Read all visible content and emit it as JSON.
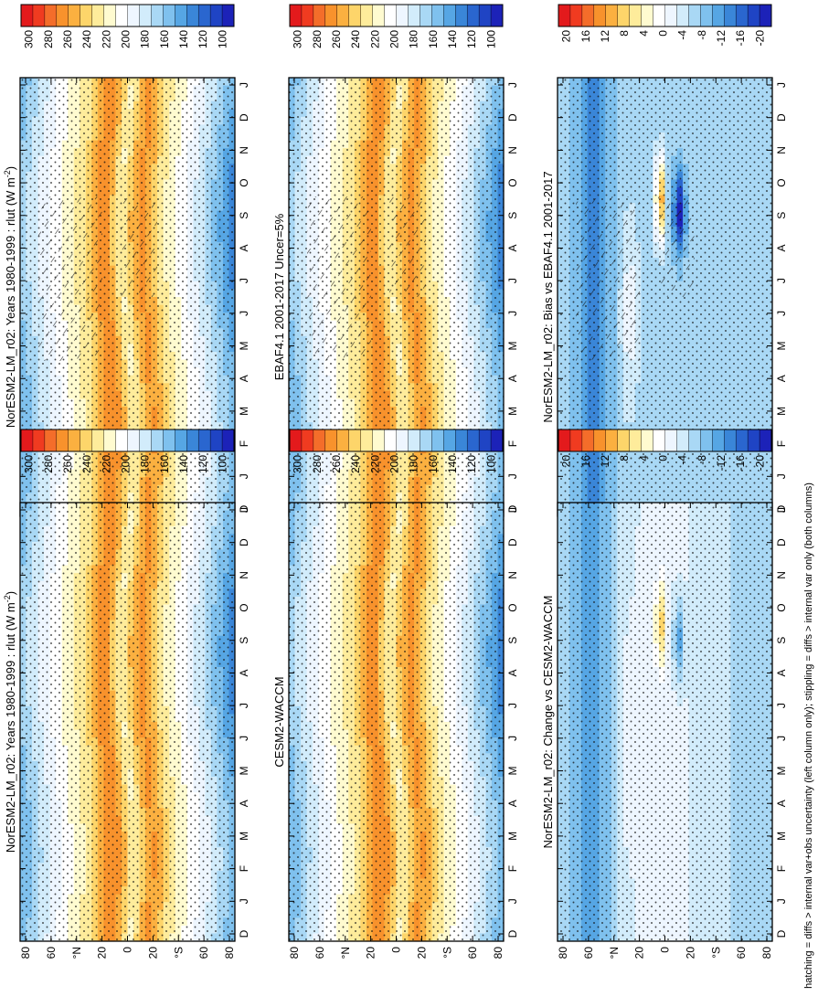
{
  "figure": {
    "footnote": "hatching = diffs > internal var+obs uncertainty (left column only); stippling = diffs > internal var only (both columns)"
  },
  "chart_data": [
    {
      "type": "heatmap",
      "title": "NorESM2-LM_r02: Years 1980-1999 : rlut (W m",
      "title_sup": "-2",
      "title_end": ")",
      "x_ticks": [
        "D",
        "J",
        "F",
        "M",
        "A",
        "M",
        "J",
        "J",
        "A",
        "S",
        "O",
        "N",
        "D",
        "J"
      ],
      "y_ticks": [
        "80",
        "60",
        "°N",
        "20",
        "0",
        "20",
        "°S",
        "60",
        "80"
      ],
      "ylim": [
        -90,
        90
      ],
      "colorbar": [
        "300",
        "280",
        "260",
        "240",
        "220",
        "200",
        "180",
        "160",
        "140",
        "120",
        "100"
      ],
      "field": "abs",
      "hatch": true
    },
    {
      "type": "heatmap",
      "title": "NorESM2-LM_r02: Years 1980-1999 : rlut (W m",
      "title_sup": "-2",
      "title_end": ")",
      "x_ticks": [
        "D",
        "J",
        "F",
        "M",
        "A",
        "M",
        "J",
        "J",
        "A",
        "S",
        "O",
        "N",
        "D",
        "J"
      ],
      "y_ticks": [
        "80",
        "60",
        "°N",
        "20",
        "0",
        "20",
        "°S",
        "60",
        "80"
      ],
      "ylim": [
        -90,
        90
      ],
      "colorbar": [
        "300",
        "280",
        "260",
        "240",
        "220",
        "200",
        "180",
        "160",
        "140",
        "120",
        "100"
      ],
      "field": "abs",
      "hatch": false
    },
    {
      "type": "heatmap",
      "title": "EBAF4.1 2001-2017 Uncer=5%",
      "x_ticks": [
        "D",
        "J",
        "F",
        "M",
        "A",
        "M",
        "J",
        "J",
        "A",
        "S",
        "O",
        "N",
        "D",
        "J"
      ],
      "y_ticks": [
        "80",
        "60",
        "°N",
        "20",
        "0",
        "20",
        "°S",
        "60",
        "80"
      ],
      "ylim": [
        -90,
        90
      ],
      "colorbar": [
        "300",
        "280",
        "260",
        "240",
        "220",
        "200",
        "180",
        "160",
        "140",
        "120",
        "100"
      ],
      "field": "abs",
      "hatch": true
    },
    {
      "type": "heatmap",
      "title": "CESM2-WACCM",
      "x_ticks": [
        "D",
        "J",
        "F",
        "M",
        "A",
        "M",
        "J",
        "J",
        "A",
        "S",
        "O",
        "N",
        "D",
        "J"
      ],
      "y_ticks": [
        "80",
        "60",
        "°N",
        "20",
        "0",
        "20",
        "°S",
        "60",
        "80"
      ],
      "ylim": [
        -90,
        90
      ],
      "colorbar": [
        "300",
        "280",
        "260",
        "240",
        "220",
        "200",
        "180",
        "160",
        "140",
        "120",
        "100"
      ],
      "field": "abs",
      "hatch": false
    },
    {
      "type": "heatmap",
      "title": "NorESM2-LM_r02: Bias vs EBAF4.1 2001-2017",
      "x_ticks": [
        "D",
        "J",
        "F",
        "M",
        "A",
        "M",
        "J",
        "J",
        "A",
        "S",
        "O",
        "N",
        "D",
        "J"
      ],
      "y_ticks": [
        "80",
        "60",
        "°N",
        "20",
        "0",
        "20",
        "°S",
        "60",
        "80"
      ],
      "ylim": [
        -90,
        90
      ],
      "colorbar": [
        "20",
        "16",
        "12",
        "8",
        "4",
        "0",
        "-4",
        "-8",
        "-12",
        "-16",
        "-20"
      ],
      "field": "diff",
      "hatch": true
    },
    {
      "type": "heatmap",
      "title": "NorESM2-LM_r02: Change vs CESM2-WACCM",
      "x_ticks": [
        "D",
        "J",
        "F",
        "M",
        "A",
        "M",
        "J",
        "J",
        "A",
        "S",
        "O",
        "N",
        "D",
        "J"
      ],
      "y_ticks": [
        "80",
        "60",
        "°N",
        "20",
        "0",
        "20",
        "°S",
        "60",
        "80"
      ],
      "ylim": [
        -90,
        90
      ],
      "colorbar": [
        "20",
        "16",
        "12",
        "8",
        "4",
        "0",
        "-4",
        "-8",
        "-12",
        "-16",
        "-20"
      ],
      "field": "diff2",
      "hatch": false
    }
  ],
  "colors": {
    "scale": [
      "#e31a1c",
      "#f03b20",
      "#f46d2a",
      "#f8922c",
      "#fbb040",
      "#fdd56a",
      "#feec9b",
      "#fffbd0",
      "#ffffff",
      "#eef6ff",
      "#d2ecfb",
      "#a9d8f5",
      "#7fc1ee",
      "#56a6e4",
      "#3a86d8",
      "#2a66cf",
      "#1f44c4",
      "#1c22b8"
    ]
  }
}
